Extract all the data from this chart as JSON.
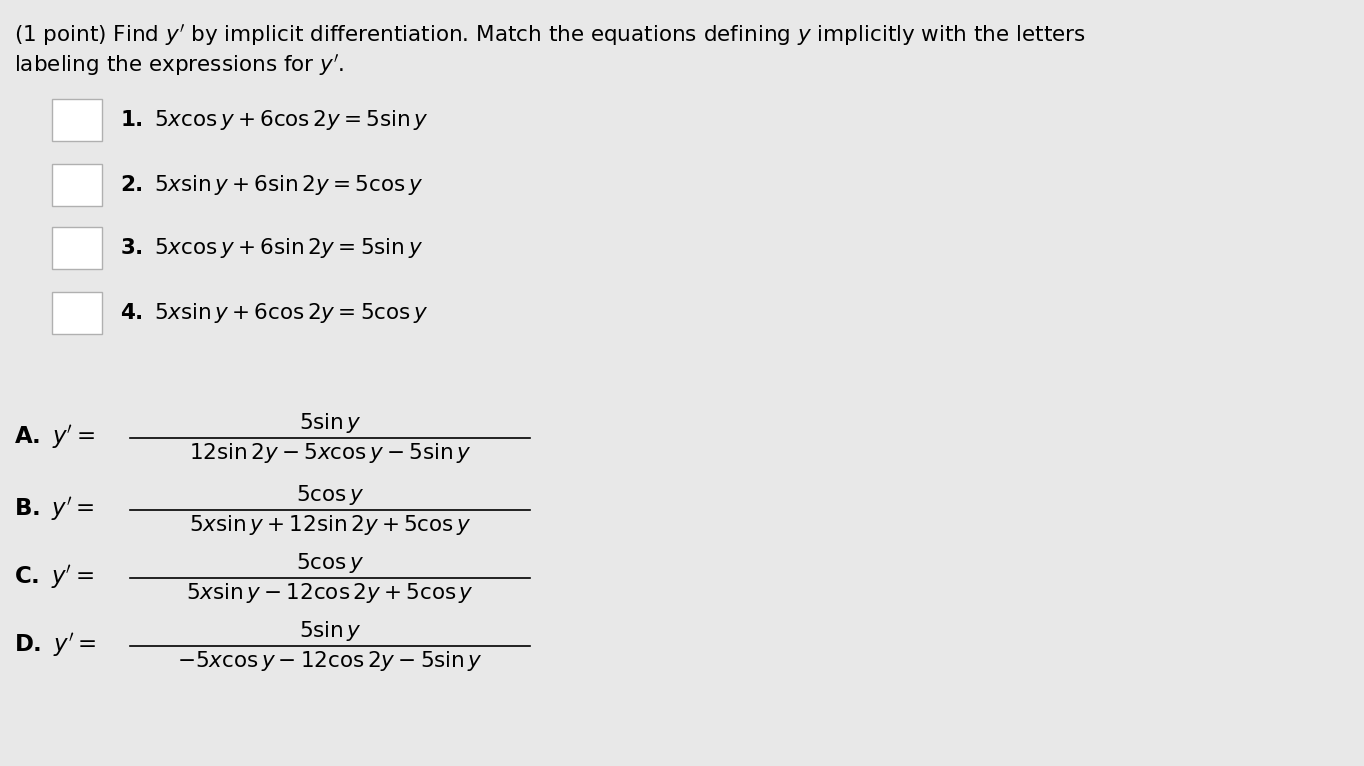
{
  "bg_color": "#e8e8e8",
  "title_line1": "(1 point) Find $y'$ by implicit differentiation. Match the equations defining $y$ implicitly with the letters",
  "title_line2": "labeling the expressions for $y'$.",
  "eq1": "$\\mathbf{1.}$ $5x\\cos y + 6\\cos 2y = 5\\sin y$",
  "eq2": "$\\mathbf{2.}$ $5x\\sin y + 6\\sin 2y = 5\\cos y$",
  "eq3": "$\\mathbf{3.}$ $5x\\cos y + 6\\sin 2y = 5\\sin y$",
  "eq4": "$\\mathbf{4.}$ $5x\\sin y + 6\\cos 2y = 5\\cos y$",
  "A_label": "$\\mathbf{A.}$ $y' =$",
  "A_num": "$5\\sin y$",
  "A_den": "$12\\sin 2y - 5x\\cos y - 5\\sin y$",
  "B_label": "$\\mathbf{B.}$ $y' =$",
  "B_num": "$5\\cos y$",
  "B_den": "$5x\\sin y + 12\\sin 2y + 5\\cos y$",
  "C_label": "$\\mathbf{C.}$ $y' =$",
  "C_num": "$5\\cos y$",
  "C_den": "$5x\\sin y - 12\\cos 2y + 5\\cos y$",
  "D_label": "$\\mathbf{D.}$ $y' =$",
  "D_num": "$5\\sin y$",
  "D_den": "$-5x\\cos y - 12\\cos 2y - 5\\sin y$",
  "font_size": 15.5,
  "box_color": "white",
  "box_edge": "#b0b0b0",
  "text_color": "black",
  "line_color": "black"
}
